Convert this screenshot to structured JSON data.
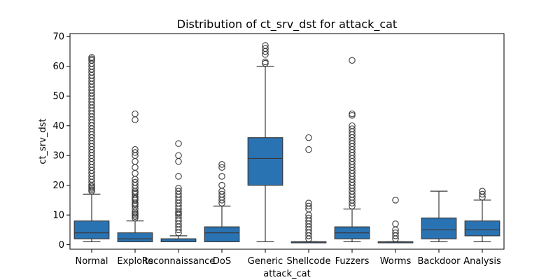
{
  "chart_data": {
    "type": "box",
    "title": "Distribution of ct_srv_dst for attack_cat",
    "xlabel": "attack_cat",
    "ylabel": "ct_srv_dst",
    "ylim": [
      -1.5,
      71
    ],
    "yticks": [
      0,
      10,
      20,
      30,
      40,
      50,
      60,
      70
    ],
    "grid": false,
    "box_color": "#2a73b3",
    "line_color": "#3a3a3a",
    "categories": [
      "Normal",
      "Exploits",
      "Reconnaissance",
      "DoS",
      "Generic",
      "Shellcode",
      "Fuzzers",
      "Worms",
      "Backdoor",
      "Analysis"
    ],
    "boxes": [
      {
        "category": "Normal",
        "whisker_low": 1,
        "q1": 2,
        "median": 4,
        "q3": 8,
        "whisker_high": 17,
        "outliers": [
          18,
          18.5,
          19,
          19.5,
          20,
          21,
          22,
          23,
          24,
          25,
          26,
          27,
          28,
          29,
          30,
          31,
          32,
          33,
          34,
          35,
          36,
          37,
          38,
          39,
          40,
          41,
          42,
          43,
          44,
          45,
          46,
          47,
          48,
          49,
          50,
          51,
          52,
          53,
          54,
          55,
          56,
          57,
          58,
          59,
          60,
          61,
          62,
          62.5,
          63
        ]
      },
      {
        "category": "Exploits",
        "whisker_low": 1,
        "q1": 1,
        "median": 2,
        "q3": 4,
        "whisker_high": 8,
        "outliers": [
          9,
          9.5,
          10,
          10.5,
          11,
          12,
          13,
          13.5,
          14,
          15,
          15.5,
          16,
          17,
          17.5,
          18,
          19,
          20,
          21,
          22,
          24,
          26,
          28,
          30,
          31,
          32,
          42,
          44
        ]
      },
      {
        "category": "Reconnaissance",
        "whisker_low": 1,
        "q1": 1,
        "median": 1,
        "q3": 2,
        "whisker_high": 3,
        "outliers": [
          4,
          5,
          6,
          7,
          8,
          9,
          10,
          10.5,
          11,
          12,
          13,
          14,
          15,
          16,
          17,
          18,
          19,
          23,
          28,
          30,
          34
        ]
      },
      {
        "category": "DoS",
        "whisker_low": 1,
        "q1": 1,
        "median": 4,
        "q3": 6,
        "whisker_high": 13,
        "outliers": [
          14,
          15,
          16,
          17,
          18,
          20,
          23,
          26,
          27
        ]
      },
      {
        "category": "Generic",
        "whisker_low": 1,
        "q1": 20,
        "median": 29,
        "q3": 36,
        "whisker_high": 60,
        "outliers": [
          61,
          61.5,
          64,
          65,
          66,
          67
        ]
      },
      {
        "category": "Shellcode",
        "whisker_low": 1,
        "q1": 1,
        "median": 1,
        "q3": 1,
        "whisker_high": 1,
        "outliers": [
          2,
          3,
          4,
          5,
          6,
          7,
          8,
          9,
          10,
          12,
          13,
          14,
          32,
          36
        ]
      },
      {
        "category": "Fuzzers",
        "whisker_low": 1,
        "q1": 2,
        "median": 4,
        "q3": 6,
        "whisker_high": 12,
        "outliers": [
          13,
          14,
          15,
          16,
          17,
          18,
          19,
          20,
          21,
          22,
          23,
          24,
          25,
          26,
          27,
          28,
          29,
          30,
          31,
          32,
          33,
          34,
          35,
          36,
          37,
          38,
          39,
          40,
          43.5,
          44,
          62
        ]
      },
      {
        "category": "Worms",
        "whisker_low": 1,
        "q1": 1,
        "median": 1,
        "q3": 1,
        "whisker_high": 1,
        "outliers": [
          2,
          3,
          4,
          5,
          7,
          15
        ]
      },
      {
        "category": "Backdoor",
        "whisker_low": 1,
        "q1": 2,
        "median": 5,
        "q3": 9,
        "whisker_high": 18,
        "outliers": []
      },
      {
        "category": "Analysis",
        "whisker_low": 1,
        "q1": 3,
        "median": 5,
        "q3": 8,
        "whisker_high": 15,
        "outliers": [
          16,
          17,
          18
        ]
      }
    ]
  }
}
